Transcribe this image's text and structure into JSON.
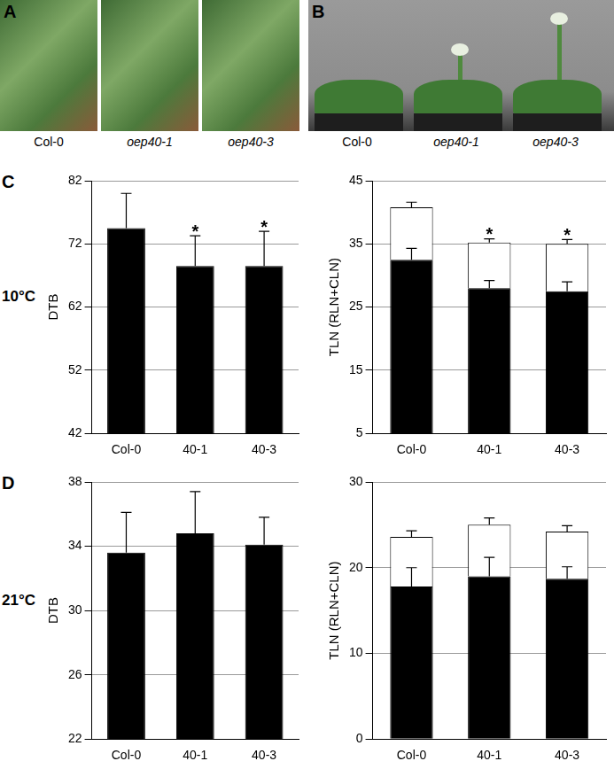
{
  "photos": [
    {
      "panel": "A",
      "captions": [
        "Col-0",
        "oep40-1",
        "oep40-3"
      ]
    },
    {
      "panel": "B",
      "captions": [
        "Col-0",
        "oep40-1",
        "oep40-3"
      ]
    }
  ],
  "chart_data": [
    {
      "type": "bar",
      "panel": "C",
      "row_label": "10°C",
      "y_label": "DTB",
      "categories": [
        "Col-0",
        "40-1",
        "40-3"
      ],
      "values": [
        74.5,
        68.5,
        68.5
      ],
      "errors": [
        5.5,
        4.8,
        5.5
      ],
      "color": "#000000",
      "ylim": [
        42,
        82
      ],
      "yticks": [
        42,
        52,
        62,
        72,
        82
      ],
      "grid": true,
      "annotations": [
        {
          "category": "40-1",
          "text": "*"
        },
        {
          "category": "40-3",
          "text": "*"
        }
      ]
    },
    {
      "type": "bar",
      "stacked": true,
      "y_label": "TLN (RLN+CLN)",
      "categories": [
        "Col-0",
        "40-1",
        "40-3"
      ],
      "series": [
        {
          "color": "#000000",
          "values": [
            32.5,
            28,
            27.5
          ],
          "errors": [
            1.8,
            1.2,
            1.5
          ]
        },
        {
          "color": "#ffffff",
          "values": [
            8.3,
            7.2,
            7.5
          ],
          "errors": [
            0.8,
            0.6,
            0.7
          ]
        }
      ],
      "ylim": [
        5,
        45
      ],
      "yticks": [
        5,
        15,
        25,
        35,
        45
      ],
      "grid": true,
      "annotations": [
        {
          "category": "40-1",
          "text": "*"
        },
        {
          "category": "40-3",
          "text": "*"
        }
      ]
    },
    {
      "type": "bar",
      "panel": "D",
      "row_label": "21°C",
      "y_label": "DTB",
      "categories": [
        "Col-0",
        "40-1",
        "40-3"
      ],
      "values": [
        33.6,
        34.8,
        34.1
      ],
      "errors": [
        2.5,
        2.6,
        1.7
      ],
      "color": "#000000",
      "ylim": [
        22,
        38
      ],
      "yticks": [
        22,
        26,
        30,
        34,
        38
      ],
      "grid": true
    },
    {
      "type": "bar",
      "stacked": true,
      "y_label": "TLN (RLN+CLN)",
      "categories": [
        "Col-0",
        "40-1",
        "40-3"
      ],
      "series": [
        {
          "color": "#000000",
          "values": [
            17.8,
            19,
            18.7
          ],
          "errors": [
            2.2,
            2.2,
            1.4
          ]
        },
        {
          "color": "#ffffff",
          "values": [
            5.8,
            6,
            5.5
          ],
          "errors": [
            0.7,
            0.8,
            0.7
          ]
        }
      ],
      "ylim": [
        0,
        30
      ],
      "yticks": [
        0,
        10,
        20,
        30
      ],
      "grid": true
    }
  ]
}
